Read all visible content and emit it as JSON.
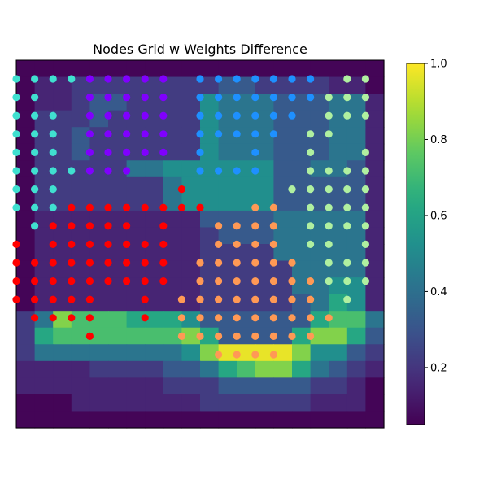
{
  "chart_data": {
    "type": "heatmap",
    "title": "Nodes Grid w Weights Difference",
    "xlabel": "",
    "ylabel": "",
    "grid": false,
    "colormap": "viridis",
    "colorbar": {
      "range": [
        0.05,
        1.0
      ],
      "ticks": [
        "0.2",
        "0.4",
        "0.6",
        "0.8",
        "1.0"
      ],
      "tick_values": [
        0.2,
        0.4,
        0.6,
        0.8,
        1.0
      ],
      "placement": "right"
    },
    "heatmap_rows": [
      "AAAAAAAAAAAAAAAAAAAA",
      "ABBCCCCCCCCDDCCCCBBA",
      "ABBCDDCCCCFEEEDDDEEB",
      "ACCCDCCCCCFEEEDDDEEB",
      "ACCDCCCCCCFEEEDDDEEB",
      "ACCDCCCCCCFEEEDDDEEB",
      "ACCCCCEEFFFFFFDDEEDB",
      "ACCCCCCCEFFFFFDDDDDB",
      "ACCCCCCCEFFFFFDDDDDB",
      "ABBBBBBBBBDDDDEEEEEB",
      "ABBBBBBBBBCDDDEEEEEB",
      "ABBBBBBBBBCCCCEEEEEB",
      "ABBBBBBBBBCCCCCEEEEB",
      "ABBBBBBBBBCCCCCEEFFB",
      "ABBBBBBBBBCCCCCDEGFB",
      "CEIHHHGGGFDDDDDDGHHE",
      "CGHHHHHHHIGDDDDGIIGD",
      "CEEEEEEEEFIJJJJIFFDC",
      "BBBBCCCCDDEGHIIGEDCB",
      "BBBBBBBBCCCDDDDDCCBA",
      "AAABBBBBBBCCCCCCBBBA",
      "AAAAAAAAAAAAAAAAAAAA"
    ],
    "value_key": {
      "A": 0.06,
      "B": 0.15,
      "C": 0.22,
      "D": 0.32,
      "E": 0.42,
      "F": 0.52,
      "G": 0.62,
      "H": 0.72,
      "I": 0.82,
      "J": 0.97
    },
    "node_grid_size": [
      20,
      20
    ],
    "node_rows": [
      "AAAABBBBB.CCCCCCC.DD",
      "AA..BBBBB.CCCCCCCDDD",
      "AAA.BBBBB.CCCCCC.DDD",
      "AAA.BBBBB.CCCCC.DD..",
      "AAA.BBBBB.C..C..D..D",
      "AAAABBB...CCCC..DDDD",
      "AAA......E.....DDDDD",
      "AAAEEEEEEEE..FF.DDDD",
      ".AEEEEE.E..FFFF.DDDD",
      "E.EEEEEEE..FFFF.DD.D",
      "EEEEEEEEE.FFFFFF.DDD",
      "EEEEEEEEE.FFFFFFFDDD",
      "EEEEE..E.FFFFFFFF.D.",
      ".EEEE..E.FFFFFFFFF..",
      "....E....FFFFFFFF...",
      "...........FFFF.....",
      "....................",
      "....................",
      "....................",
      "...................."
    ],
    "node_colors": {
      "A": "#40e0d0",
      "B": "#8000ff",
      "C": "#1e90ff",
      "D": "#b0f0a0",
      "E": "#ff0000",
      "F": "#ff9955"
    }
  }
}
